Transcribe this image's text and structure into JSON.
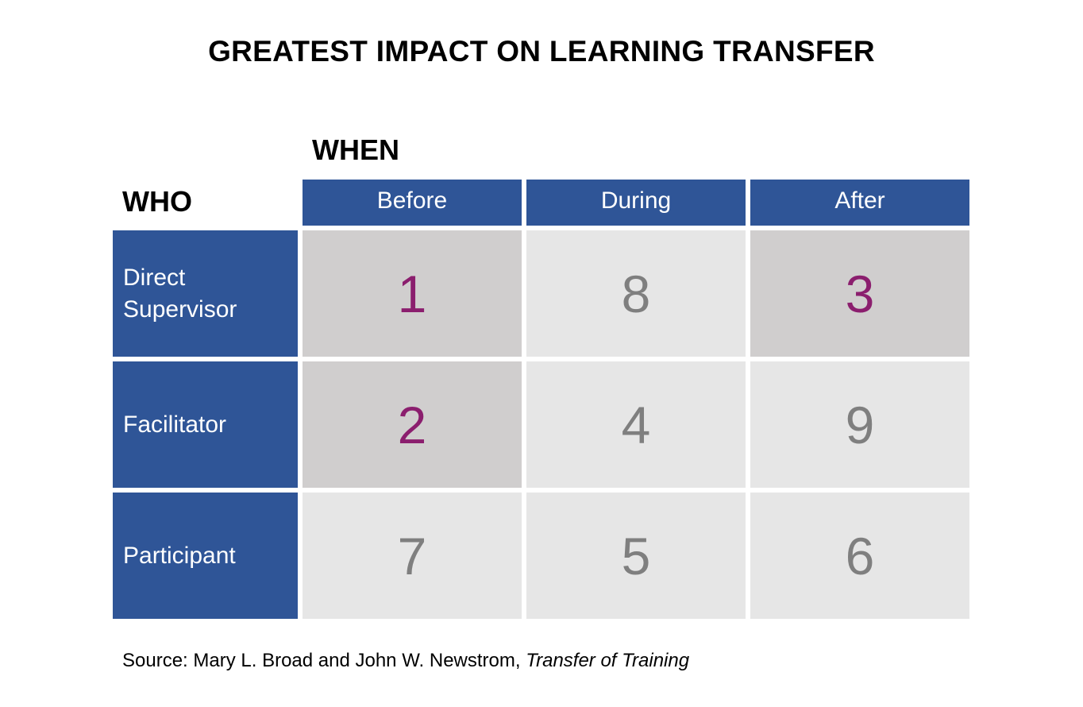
{
  "title": "GREATEST IMPACT ON LEARNING TRANSFER",
  "when_label": "WHEN",
  "who_label": "WHO",
  "columns": [
    "Before",
    "During",
    "After"
  ],
  "rows": [
    {
      "label_line1": "Direct",
      "label_line2": "Supervisor",
      "values": [
        "1",
        "8",
        "3"
      ]
    },
    {
      "label_line1": "Facilitator",
      "label_line2": "",
      "values": [
        "2",
        "4",
        "9"
      ]
    },
    {
      "label_line1": "Participant",
      "label_line2": "",
      "values": [
        "7",
        "5",
        "6"
      ]
    }
  ],
  "highlighted_ranks": [
    "1",
    "2",
    "3"
  ],
  "colors": {
    "header_blue": "#2f5597",
    "cell_light": "#e6e6e6",
    "cell_highlight": "#d0cece",
    "rank_highlight": "#8b1e6e",
    "rank_normal": "#7f7f7f"
  },
  "source": {
    "prefix": "Source: Mary L. Broad and John W. Newstrom, ",
    "book": "Transfer of Training"
  }
}
